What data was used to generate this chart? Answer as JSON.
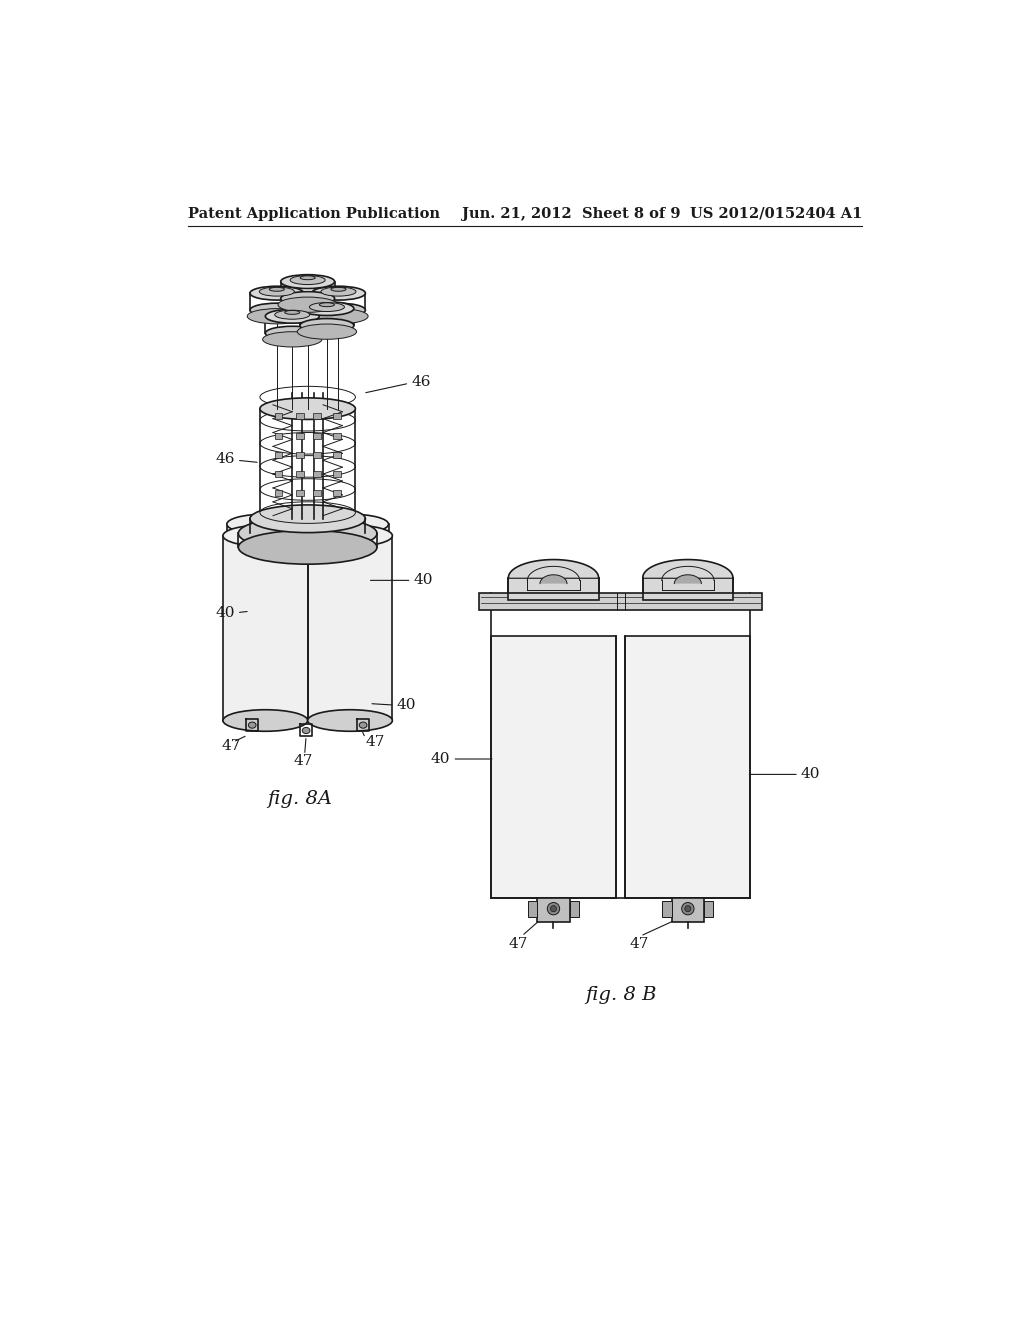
{
  "header_left": "Patent Application Publication",
  "header_mid": "Jun. 21, 2012  Sheet 8 of 9",
  "header_right": "US 2012/0152404 A1",
  "header_fontsize": 11,
  "fig_label_8A": "fig. 8A",
  "fig_label_8B": "fig. 8 B",
  "background_color": "#ffffff",
  "line_color": "#1a1a1a",
  "gray_light": "#e8e8e8",
  "gray_mid": "#cccccc",
  "gray_dark": "#999999"
}
